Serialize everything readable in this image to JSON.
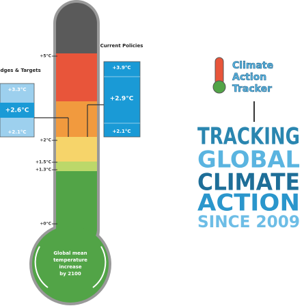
{
  "scale": {
    "labels": [
      "+5°C",
      "+2°C",
      "+1.5°C",
      "+1.3°C",
      "+0°C"
    ]
  },
  "current_policies": {
    "title": "Current Policies",
    "high": "+3.9°C",
    "median": "+2.9°C",
    "low": "+2.1°C"
  },
  "pledges_targets": {
    "title": "Pledges & Targets",
    "high": "+3.3°C",
    "median": "+2.6°C",
    "low": "+2.1°C"
  },
  "bulb": {
    "lines": [
      "Global mean",
      "temperature",
      "increase",
      "by 2100"
    ]
  },
  "logo": {
    "lines": [
      "Climate",
      "Action",
      "Tracker"
    ]
  },
  "tagline": {
    "lines": [
      "TRACKING",
      "GLOBAL",
      "CLIMATE",
      "ACTION",
      "SINCE 2009"
    ]
  }
}
